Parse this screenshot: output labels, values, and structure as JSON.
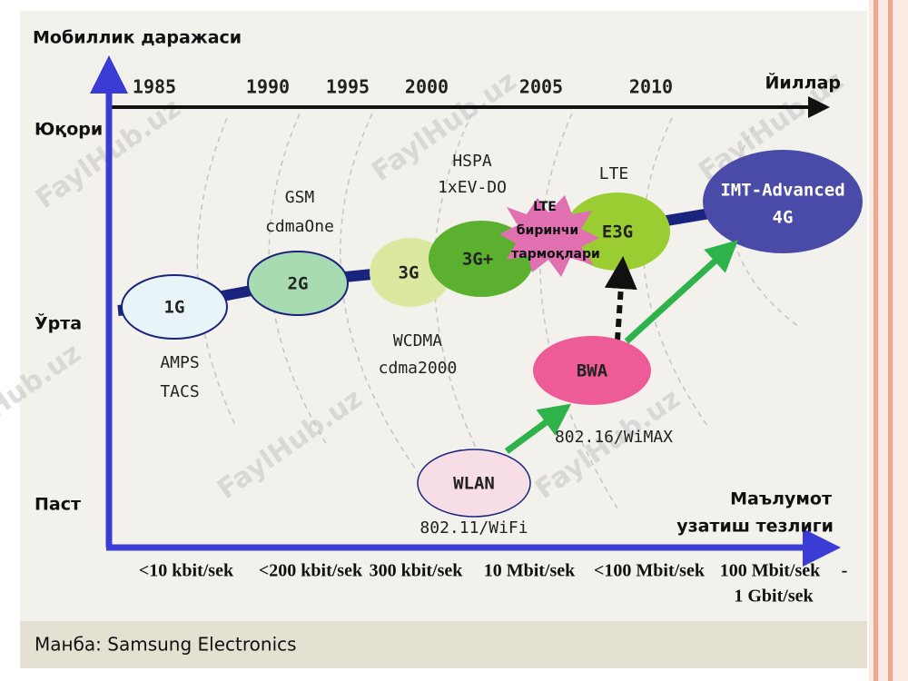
{
  "axes": {
    "y_title": "Мобиллик даражаси",
    "levels": [
      "Юқори",
      "Ўрта",
      "Паст"
    ],
    "years": [
      "1985",
      "1990",
      "1995",
      "2000",
      "2005",
      "2010"
    ],
    "years_title": "Йиллар",
    "x_title": [
      "Маълумот",
      "узатиш тезлиги"
    ],
    "speeds": [
      "<10 kbit/sek",
      "<200 kbit/sek",
      "300 kbit/sek",
      "10 Mbit/sek",
      "<100 Mbit/sek",
      "100 Mbit/sek",
      "-",
      "1 Gbit/sek"
    ]
  },
  "nodes": [
    {
      "label": "1G",
      "notes": [
        "AMPS",
        "TACS"
      ]
    },
    {
      "label": "2G",
      "notes": [
        "GSM",
        "cdmaOne"
      ]
    },
    {
      "label": "3G",
      "notes": [
        "WCDMA",
        "cdma2000"
      ]
    },
    {
      "label": "3G+",
      "notes": [
        "HSPA",
        "1xEV-DO"
      ]
    },
    {
      "label": "LTE биринчи тармоқлари",
      "lines": [
        "LTE",
        "биринчи",
        "тармоқлари"
      ]
    },
    {
      "label": "E3G",
      "notes": [
        "LTE"
      ]
    },
    {
      "label": [
        "IMT-Advanced",
        "4G"
      ]
    },
    {
      "label": "BWA",
      "notes": [
        "802.16/WiMAX"
      ]
    },
    {
      "label": "WLAN",
      "notes": [
        "802.11/WiFi"
      ]
    }
  ],
  "watermark": "FaylHub.uz",
  "source": "Манба: Samsung Electronics"
}
